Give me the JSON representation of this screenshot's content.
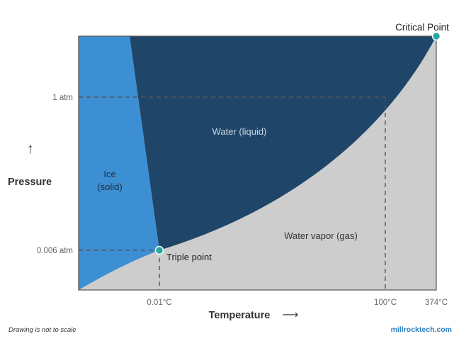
{
  "diagram": {
    "y_axis_label": "Pressure",
    "y_axis_arrow": "↑",
    "x_axis_label": "Temperature",
    "x_axis_arrow": "⟶",
    "y_ticks": [
      "1 atm",
      "0.006 atm"
    ],
    "x_ticks": [
      "0.01°C",
      "100°C",
      "374°C"
    ],
    "regions": {
      "solid_line1": "Ice",
      "solid_line2": "(solid)",
      "liquid": "Water (liquid)",
      "gas": "Water vapor (gas)"
    },
    "points": {
      "critical": "Critical Point",
      "triple": "Triple point"
    },
    "colors": {
      "solid": "#3d8fd4",
      "liquid": "#1f4668",
      "gas": "#cdcdcd",
      "point": "#2aa8a0",
      "dashed": "#555555"
    }
  },
  "footer": {
    "note": "Drawing is not to scale",
    "brand": "millrocktech.com"
  }
}
